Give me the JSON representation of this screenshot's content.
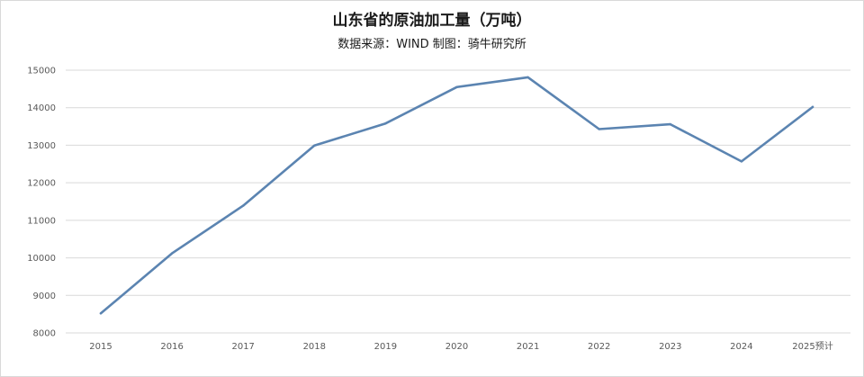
{
  "chart_data": {
    "type": "line",
    "title": "山东省的原油加工量（万吨）",
    "subtitle": "数据来源：WIND 制图：骑牛研究所",
    "categories": [
      "2015",
      "2016",
      "2017",
      "2018",
      "2019",
      "2020",
      "2021",
      "2022",
      "2023",
      "2024",
      "2025预计"
    ],
    "series": [
      {
        "values": [
          8520,
          10120,
          11390,
          12990,
          13580,
          14550,
          14810,
          13430,
          13560,
          12570,
          14020
        ]
      }
    ],
    "yticks": [
      "15000",
      "14000",
      "13000",
      "12000",
      "11000",
      "10000",
      "9000",
      "8000"
    ],
    "ylim": [
      8000,
      15000
    ],
    "grid": true,
    "legend": "none",
    "colors": {
      "line": "#5b84b1",
      "grid": "#d9d9d9"
    }
  }
}
